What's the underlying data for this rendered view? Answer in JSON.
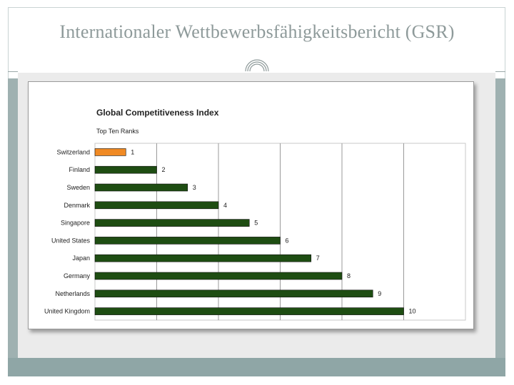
{
  "slide": {
    "title": "Internationaler Wettbewerbsfähigkeitsbericht (GSR)",
    "ornament_icon": "arc-ornament-icon"
  },
  "colors": {
    "bar_default": "#1e4d12",
    "bar_highlight": "#f08a24",
    "frame": "#9fb1b1",
    "title": "#8e9a9a"
  },
  "chart_data": {
    "type": "bar",
    "orientation": "horizontal",
    "title": "Global Competitiveness Index",
    "subtitle": "Top Ten Ranks",
    "xlabel": "",
    "ylabel": "",
    "categories": [
      "Switzerland",
      "Finland",
      "Sweden",
      "Denmark",
      "Singapore",
      "United States",
      "Japan",
      "Germany",
      "Netherlands",
      "United Kingdom"
    ],
    "values": [
      1,
      2,
      3,
      4,
      5,
      6,
      7,
      8,
      9,
      10
    ],
    "data_labels": [
      "1",
      "2",
      "3",
      "4",
      "5",
      "6",
      "7",
      "8",
      "9",
      "10"
    ],
    "highlight_index": 0,
    "xlim": [
      0,
      12
    ],
    "grid": true,
    "legend": "none"
  }
}
